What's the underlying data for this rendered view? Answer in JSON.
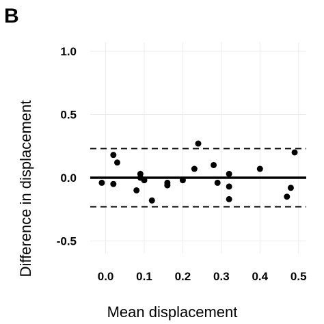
{
  "panel_label": "B",
  "chart_data": {
    "type": "scatter",
    "title": "",
    "xlabel": "Mean displacement",
    "ylabel": "Difference in displacement",
    "xlim": [
      -0.04,
      0.52
    ],
    "ylim": [
      -0.6,
      1.07
    ],
    "xticks": [
      0.0,
      0.1,
      0.2,
      0.3,
      0.4,
      0.5
    ],
    "xtick_labels": [
      "0.0",
      "0.1",
      "0.2",
      "0.3",
      "0.4",
      "0.5"
    ],
    "yticks": [
      -0.5,
      0.0,
      0.5,
      1.0
    ],
    "ytick_labels": [
      "-0.5",
      "0.0",
      "0.5",
      "1.0"
    ],
    "grid": true,
    "mean_difference": 0.0,
    "limits_of_agreement": [
      0.23,
      -0.23
    ],
    "points": {
      "x": [
        -0.01,
        0.02,
        0.02,
        0.03,
        0.08,
        0.09,
        0.09,
        0.1,
        0.12,
        0.16,
        0.16,
        0.2,
        0.23,
        0.24,
        0.28,
        0.29,
        0.32,
        0.32,
        0.32,
        0.4,
        0.47,
        0.48,
        0.49
      ],
      "y": [
        -0.04,
        0.18,
        -0.05,
        0.12,
        -0.1,
        0.03,
        0.0,
        -0.02,
        -0.18,
        -0.04,
        -0.06,
        -0.02,
        0.07,
        0.27,
        0.1,
        -0.04,
        0.03,
        -0.07,
        -0.17,
        0.07,
        -0.15,
        -0.08,
        0.2
      ]
    },
    "colors": {
      "points": "#000000",
      "lines": "#000000",
      "grid": "#ececec"
    }
  }
}
